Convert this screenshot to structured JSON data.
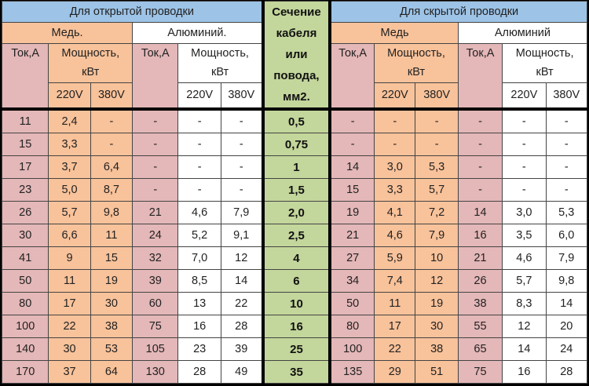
{
  "headers": {
    "open": "Для открытой проводки",
    "hidden": "Для скрытой проводки",
    "section_lines": [
      "Сечение",
      "кабеля",
      "или",
      "повода,",
      "мм2."
    ],
    "open_copper": "Медь.",
    "open_aluminum": "Алюминий.",
    "hidden_copper": "Медь",
    "hidden_aluminum": "Алюминий",
    "current": "Ток,А",
    "power_line1": "Мощность,",
    "power_line2": "кВт",
    "v220": "220V",
    "v380": "380V"
  },
  "colors": {
    "header": "#9dc3e6",
    "copper": "#f8c29a",
    "current": "#e4b7b8",
    "section": "#c3d69b",
    "aluminum": "#ffffff"
  },
  "rows": [
    {
      "section": "0,5",
      "open": [
        "11",
        "2,4",
        "-",
        "-",
        "-",
        "-"
      ],
      "hidden": [
        "-",
        "-",
        "-",
        "-",
        "-",
        "-"
      ]
    },
    {
      "section": "0,75",
      "open": [
        "15",
        "3,3",
        "-",
        "-",
        "-",
        "-"
      ],
      "hidden": [
        "-",
        "-",
        "-",
        "-",
        "-",
        "-"
      ]
    },
    {
      "section": "1",
      "open": [
        "17",
        "3,7",
        "6,4",
        "-",
        "-",
        "-"
      ],
      "hidden": [
        "14",
        "3,0",
        "5,3",
        "-",
        "-",
        "-"
      ]
    },
    {
      "section": "1,5",
      "open": [
        "23",
        "5,0",
        "8,7",
        "-",
        "-",
        "-"
      ],
      "hidden": [
        "15",
        "3,3",
        "5,7",
        "-",
        "-",
        "-"
      ]
    },
    {
      "section": "2,0",
      "open": [
        "26",
        "5,7",
        "9,8",
        "21",
        "4,6",
        "7,9"
      ],
      "hidden": [
        "19",
        "4,1",
        "7,2",
        "14",
        "3,0",
        "5,3"
      ]
    },
    {
      "section": "2,5",
      "open": [
        "30",
        "6,6",
        "11",
        "24",
        "5,2",
        "9,1"
      ],
      "hidden": [
        "21",
        "4,6",
        "7,9",
        "16",
        "3,5",
        "6,0"
      ]
    },
    {
      "section": "4",
      "open": [
        "41",
        "9",
        "15",
        "32",
        "7,0",
        "12"
      ],
      "hidden": [
        "27",
        "5,9",
        "10",
        "21",
        "4,6",
        "7,9"
      ]
    },
    {
      "section": "6",
      "open": [
        "50",
        "11",
        "19",
        "39",
        "8,5",
        "14"
      ],
      "hidden": [
        "34",
        "7,4",
        "12",
        "26",
        "5,7",
        "9,8"
      ]
    },
    {
      "section": "10",
      "open": [
        "80",
        "17",
        "30",
        "60",
        "13",
        "22"
      ],
      "hidden": [
        "50",
        "11",
        "19",
        "38",
        "8,3",
        "14"
      ]
    },
    {
      "section": "16",
      "open": [
        "100",
        "22",
        "38",
        "75",
        "16",
        "28"
      ],
      "hidden": [
        "80",
        "17",
        "30",
        "55",
        "12",
        "20"
      ]
    },
    {
      "section": "25",
      "open": [
        "140",
        "30",
        "53",
        "105",
        "23",
        "39"
      ],
      "hidden": [
        "100",
        "22",
        "38",
        "65",
        "14",
        "24"
      ]
    },
    {
      "section": "35",
      "open": [
        "170",
        "37",
        "64",
        "130",
        "28",
        "49"
      ],
      "hidden": [
        "135",
        "29",
        "51",
        "75",
        "16",
        "28"
      ]
    }
  ]
}
